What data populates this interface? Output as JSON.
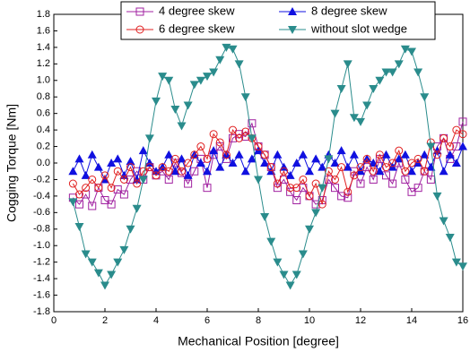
{
  "chart_data": {
    "type": "line",
    "xlabel": "Mechanical Position [degree]",
    "ylabel": "Cogging Torque [Nm]",
    "xlim": [
      0,
      16
    ],
    "xticks": [
      0,
      2,
      4,
      6,
      8,
      10,
      12,
      14,
      16
    ],
    "ylim": [
      -1.8,
      1.8
    ],
    "yticks": [
      1.8,
      1.6,
      1.4,
      1.2,
      {
        "value": 1,
        "label": "1.0"
      },
      0.8,
      0.6,
      0.4,
      0.2,
      {
        "value": 0,
        "label": "0.0"
      },
      -0.2,
      -0.4,
      -0.6,
      -0.8,
      {
        "value": -1,
        "label": "-1.0"
      },
      -1.2,
      -1.4,
      -1.6,
      -1.8
    ],
    "legend": "top",
    "x": [
      0.75,
      1,
      1.25,
      1.5,
      1.75,
      2,
      2.25,
      2.5,
      2.75,
      3,
      3.25,
      3.5,
      3.75,
      4,
      4.25,
      4.5,
      4.75,
      5,
      5.25,
      5.5,
      5.75,
      6,
      6.25,
      6.5,
      6.75,
      7,
      7.25,
      7.5,
      7.75,
      8,
      8.25,
      8.5,
      8.75,
      9,
      9.25,
      9.5,
      9.75,
      10,
      10.25,
      10.5,
      10.75,
      11,
      11.25,
      11.5,
      11.75,
      12,
      12.25,
      12.5,
      12.75,
      13,
      13.25,
      13.5,
      13.75,
      14,
      14.25,
      14.5,
      14.75,
      15,
      15.25,
      15.5,
      15.75,
      16
    ],
    "series": [
      {
        "name": "4 degree skew",
        "color": "#a020a0",
        "marker": "square",
        "values": [
          -0.42,
          -0.5,
          -0.38,
          -0.52,
          -0.3,
          -0.45,
          -0.5,
          -0.32,
          -0.38,
          -0.2,
          -0.1,
          -0.2,
          -0.05,
          -0.15,
          -0.1,
          -0.2,
          0.0,
          -0.12,
          -0.25,
          -0.1,
          0.05,
          -0.3,
          0.1,
          0.2,
          0.05,
          0.3,
          0.35,
          0.32,
          0.48,
          0.2,
          0.1,
          -0.05,
          -0.3,
          -0.2,
          -0.35,
          -0.45,
          -0.3,
          -0.4,
          -0.5,
          -0.45,
          -0.2,
          -0.3,
          -0.4,
          -0.42,
          -0.1,
          -0.25,
          -0.05,
          -0.2,
          0.05,
          -0.15,
          -0.25,
          0.0,
          -0.2,
          -0.35,
          -0.3,
          -0.1,
          -0.2,
          0.2,
          0.3,
          0.05,
          0.2,
          0.5
        ]
      },
      {
        "name": "8 degree skew",
        "color": "#1010e0",
        "marker": "triangle-up",
        "values": [
          -0.1,
          0.05,
          -0.15,
          0.1,
          -0.05,
          -0.2,
          0.0,
          0.05,
          -0.15,
          0.02,
          -0.2,
          0.15,
          0.0,
          -0.1,
          -0.05,
          0.1,
          -0.1,
          0.05,
          -0.15,
          0.1,
          0.0,
          -0.1,
          0.15,
          -0.05,
          0.1,
          0.0,
          0.1,
          -0.1,
          0.05,
          0.15,
          0.0,
          -0.1,
          0.1,
          -0.05,
          -0.15,
          0.0,
          0.1,
          -0.1,
          0.05,
          -0.05,
          0.1,
          0.0,
          0.15,
          -0.05,
          0.1,
          -0.1,
          0.05,
          0.0,
          -0.1,
          0.1,
          -0.05,
          0.05,
          0.1,
          -0.1,
          0.0,
          0.1,
          -0.05,
          0.15,
          -0.1,
          0.1,
          0.0,
          0.2
        ]
      },
      {
        "name": "6 degree skew",
        "color": "#e02020",
        "marker": "circle",
        "values": [
          -0.25,
          -0.38,
          -0.3,
          -0.2,
          -0.3,
          -0.15,
          -0.3,
          -0.1,
          -0.2,
          -0.05,
          -0.25,
          -0.1,
          -0.05,
          -0.15,
          -0.05,
          -0.1,
          0.05,
          -0.1,
          0.0,
          0.1,
          0.2,
          0.05,
          0.35,
          0.25,
          0.1,
          0.4,
          0.3,
          0.38,
          0.3,
          0.2,
          0.1,
          -0.05,
          -0.25,
          -0.1,
          -0.3,
          -0.3,
          -0.2,
          -0.4,
          -0.25,
          -0.5,
          -0.1,
          -0.2,
          -0.05,
          -0.35,
          -0.15,
          -0.05,
          0.05,
          -0.1,
          0.1,
          -0.05,
          0.0,
          0.15,
          -0.1,
          0.0,
          0.05,
          -0.1,
          0.25,
          0.1,
          0.3,
          0.2,
          0.4,
          0.35
        ]
      },
      {
        "name": "without slot wedge",
        "color": "#2a8c8c",
        "marker": "triangle-down",
        "values": [
          -0.47,
          -0.77,
          -1.1,
          -1.2,
          -1.33,
          -1.48,
          -1.35,
          -1.2,
          -1.05,
          -0.8,
          -0.55,
          -0.2,
          0.3,
          0.75,
          1.05,
          1.0,
          0.65,
          0.45,
          0.7,
          0.95,
          1.0,
          1.05,
          1.1,
          1.25,
          1.4,
          1.38,
          1.2,
          0.8,
          0.3,
          -0.2,
          -0.65,
          -0.95,
          -1.2,
          -1.35,
          -1.48,
          -1.35,
          -1.1,
          -0.8,
          -0.6,
          -0.3,
          0.05,
          0.6,
          0.9,
          1.2,
          0.55,
          0.5,
          0.7,
          0.9,
          1.0,
          1.1,
          1.1,
          1.2,
          1.38,
          1.35,
          1.1,
          0.8,
          0.2,
          -0.4,
          -0.7,
          -0.9,
          -1.2,
          -1.25
        ]
      }
    ]
  }
}
